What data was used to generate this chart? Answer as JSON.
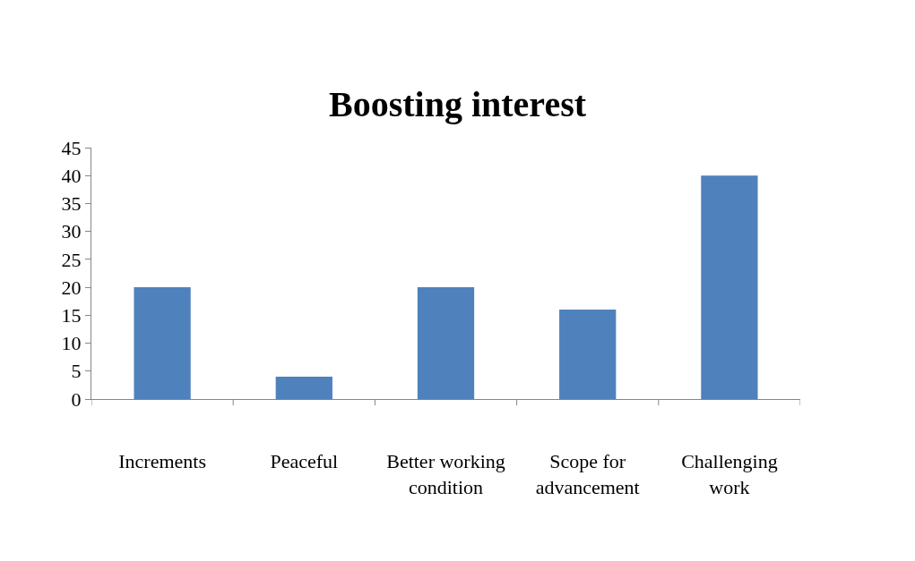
{
  "chart_data": {
    "type": "bar",
    "title": "Boosting interest",
    "categories": [
      "Increments",
      "Peaceful",
      "Better working condition",
      "Scope for advancement",
      "Challenging work"
    ],
    "values": [
      20,
      4,
      20,
      16,
      40
    ],
    "color": "#4f81bd",
    "ylim": [
      0,
      45
    ],
    "yticks": [
      0,
      5,
      10,
      15,
      20,
      25,
      30,
      35,
      40,
      45
    ],
    "legend": false
  }
}
